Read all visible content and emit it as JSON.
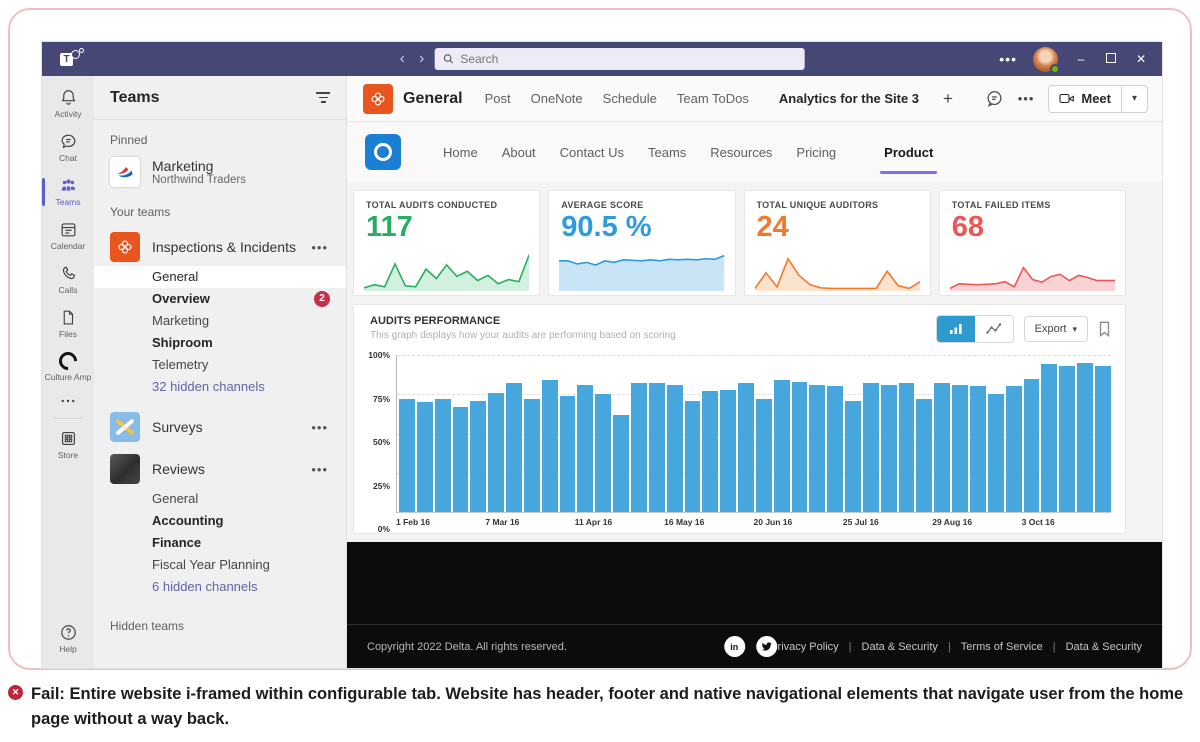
{
  "titlebar": {
    "search_placeholder": "Search"
  },
  "rail": {
    "items": [
      {
        "label": "Activity"
      },
      {
        "label": "Chat"
      },
      {
        "label": "Teams"
      },
      {
        "label": "Calendar"
      },
      {
        "label": "Calls"
      },
      {
        "label": "Files"
      },
      {
        "label": "Culture Amp"
      },
      {
        "label": "Store"
      },
      {
        "label": "Help"
      }
    ]
  },
  "sidebar": {
    "title": "Teams",
    "pinned_label": "Pinned",
    "pinned": {
      "name": "Marketing",
      "org": "Northwind Traders"
    },
    "your_teams_label": "Your teams",
    "teams": [
      {
        "name": "Inspections & Incidents",
        "channels": [
          {
            "label": "General"
          },
          {
            "label": "Overview",
            "badge": "2"
          },
          {
            "label": "Marketing"
          },
          {
            "label": "Shiproom"
          },
          {
            "label": "Telemetry"
          },
          {
            "label": "32 hidden channels"
          }
        ]
      },
      {
        "name": "Surveys",
        "channels": []
      },
      {
        "name": "Reviews",
        "channels": [
          {
            "label": "General"
          },
          {
            "label": "Accounting"
          },
          {
            "label": "Finance"
          },
          {
            "label": "Fiscal Year Planning"
          },
          {
            "label": "6 hidden channels"
          }
        ]
      }
    ],
    "hidden_teams_label": "Hidden teams"
  },
  "channel_header": {
    "title": "General",
    "tabs": [
      "Post",
      "OneNote",
      "Schedule",
      "Team ToDos"
    ],
    "active_tab": "Analytics for the Site 3",
    "add_tab": "+",
    "meet_label": "Meet"
  },
  "site": {
    "nav": [
      "Home",
      "About",
      "Contact Us",
      "Teams",
      "Resources",
      "Pricing"
    ],
    "active_nav": "Product"
  },
  "stats": [
    {
      "label": "TOTAL AUDITS CONDUCTED",
      "value": "117",
      "color": "#27ae60",
      "fill": "#d2efdf",
      "spark": [
        6,
        12,
        8,
        52,
        10,
        8,
        42,
        24,
        50,
        28,
        38,
        20,
        30,
        14,
        22,
        18,
        70
      ]
    },
    {
      "label": "AVERAGE SCORE",
      "value": "90.5 %",
      "color": "#2d9cdb",
      "fill": "#c9e4f5",
      "spark": [
        58,
        58,
        52,
        55,
        50,
        58,
        55,
        60,
        59,
        58,
        60,
        58,
        61,
        60,
        61,
        60,
        62,
        61,
        68
      ]
    },
    {
      "label": "TOTAL UNIQUE AUDITORS",
      "value": "24",
      "color": "#f2792c",
      "fill": "#fbe3cd",
      "spark": [
        5,
        35,
        8,
        62,
        30,
        12,
        6,
        5,
        5,
        5,
        5,
        5,
        38,
        10,
        5,
        18
      ]
    },
    {
      "label": "TOTAL FAILED ITEMS",
      "value": "68",
      "color": "#eb5757",
      "fill": "#f8d2d4",
      "spark": [
        5,
        14,
        13,
        12,
        13,
        14,
        18,
        8,
        45,
        22,
        17,
        28,
        32,
        20,
        30,
        26,
        20,
        20,
        20
      ]
    }
  ],
  "chart_data": {
    "type": "bar",
    "title": "AUDITS PERFORMANCE",
    "subtitle": "This graph displays how your audits are performing based on scoring",
    "ylim": [
      0,
      100
    ],
    "y_ticks": [
      "100%",
      "75%",
      "50%",
      "25%",
      "0%"
    ],
    "x_labels": [
      "1 Feb 16",
      "7 Mar 16",
      "11 Apr 16",
      "16 May 16",
      "20 Jun 16",
      "25 Jul 16",
      "29 Aug 16",
      "3 Oct 16"
    ],
    "values": [
      72,
      70,
      72,
      67,
      71,
      76,
      82,
      72,
      84,
      74,
      81,
      75,
      62,
      82,
      82,
      81,
      71,
      77,
      78,
      82,
      72,
      84,
      83,
      81,
      80,
      71,
      82,
      81,
      82,
      72,
      82,
      81,
      80,
      75,
      80,
      85,
      94,
      93,
      95,
      93
    ],
    "bar_color": "#47a7dd",
    "grid": true,
    "export_label": "Export"
  },
  "footer": {
    "copyright": "Copyright 2022 Delta. All rights reserved.",
    "socials": [
      "linkedin",
      "twitter"
    ],
    "linkedin_glyph": "in",
    "links": [
      "Privacy Policy",
      "Data & Security",
      "Terms of Service",
      "Data & Security"
    ],
    "sep": "|"
  },
  "caption": {
    "text": "Fail: Entire website i-framed within configurable tab. Website has header, footer and native navigational elements that navigate user from the home page without a way back."
  }
}
